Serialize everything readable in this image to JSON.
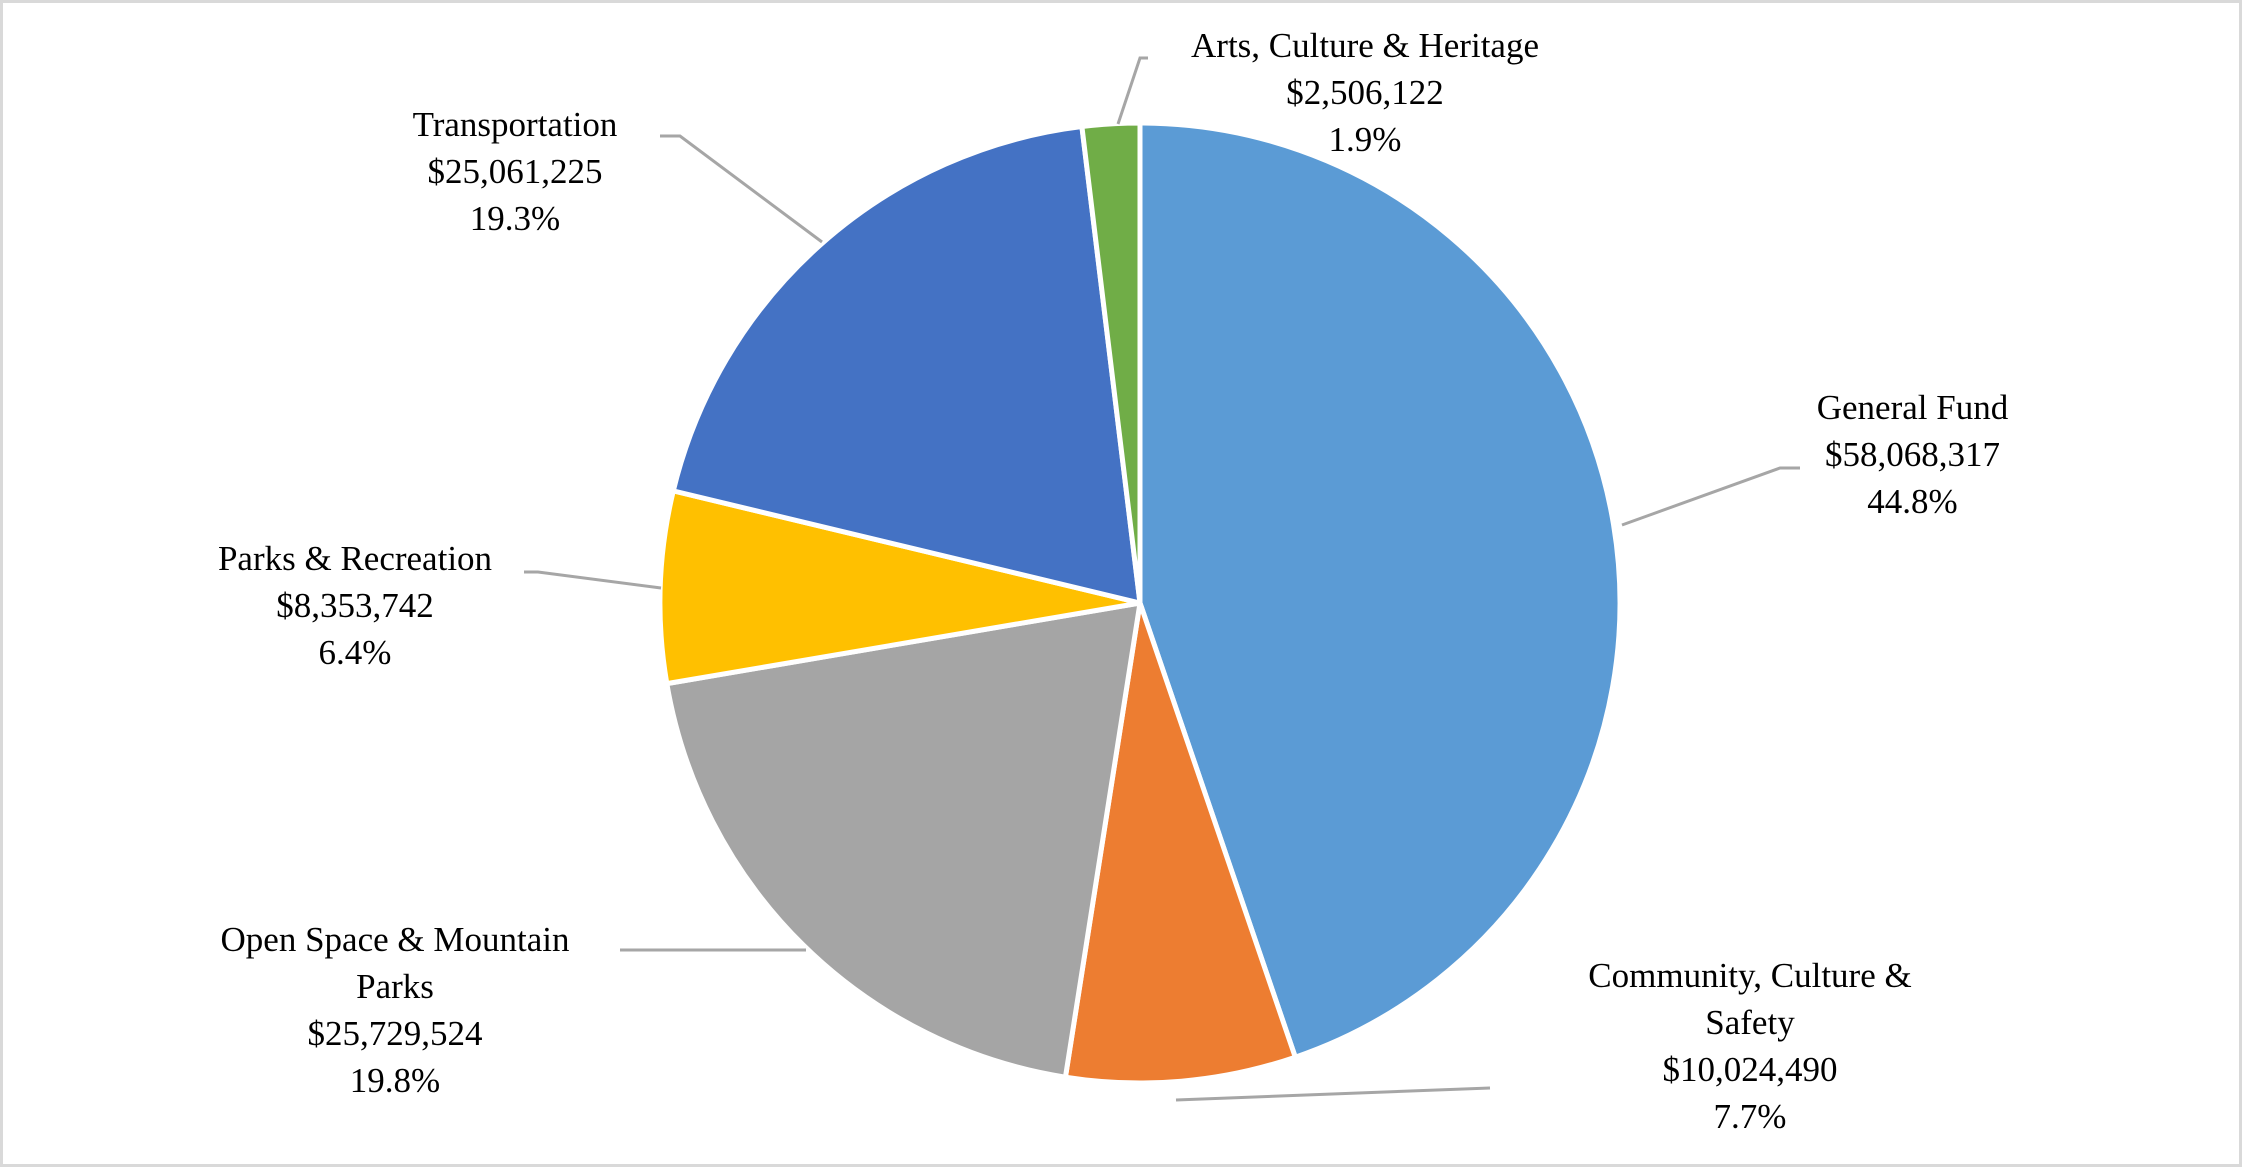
{
  "chart_data": {
    "type": "pie",
    "title": "",
    "start_angle_deg": 0,
    "direction": "clockwise",
    "slices": [
      {
        "label": "General Fund",
        "value": 58068317,
        "value_label": "$58,068,317",
        "percent": 44.8,
        "percent_label": "44.8%",
        "color": "#5B9BD5"
      },
      {
        "label": "Community, Culture & Safety",
        "value": 10024490,
        "value_label": "$10,024,490",
        "percent": 7.7,
        "percent_label": "7.7%",
        "color": "#ED7D31"
      },
      {
        "label": "Open Space & Mountain Parks",
        "value": 25729524,
        "value_label": "$25,729,524",
        "percent": 19.8,
        "percent_label": "19.8%",
        "color": "#A5A5A5"
      },
      {
        "label": "Parks & Recreation",
        "value": 8353742,
        "value_label": "$8,353,742",
        "percent": 6.4,
        "percent_label": "6.4%",
        "color": "#FFC000"
      },
      {
        "label": "Transportation",
        "value": 25061225,
        "value_label": "$25,061,225",
        "percent": 19.3,
        "percent_label": "19.3%",
        "color": "#4472C4"
      },
      {
        "label": "Arts, Culture & Heritage",
        "value": 2506122,
        "value_label": "$2,506,122",
        "percent": 1.9,
        "percent_label": "1.9%",
        "color": "#70AD47"
      }
    ],
    "legend": "none",
    "data_labels": "category, value, percentage with leader lines"
  },
  "labels": {
    "general_fund": {
      "l1": "General Fund",
      "l2": "$58,068,317",
      "l3": "44.8%"
    },
    "community": {
      "l1": "Community, Culture &",
      "l2": "Safety",
      "l3": "$10,024,490",
      "l4": "7.7%"
    },
    "open_space": {
      "l1": "Open Space & Mountain",
      "l2": "Parks",
      "l3": "$25,729,524",
      "l4": "19.8%"
    },
    "parks_rec": {
      "l1": "Parks & Recreation",
      "l2": "$8,353,742",
      "l3": "6.4%"
    },
    "transportation": {
      "l1": "Transportation",
      "l2": "$25,061,225",
      "l3": "19.3%"
    },
    "arts": {
      "l1": "Arts, Culture & Heritage",
      "l2": "$2,506,122",
      "l3": "1.9%"
    }
  }
}
